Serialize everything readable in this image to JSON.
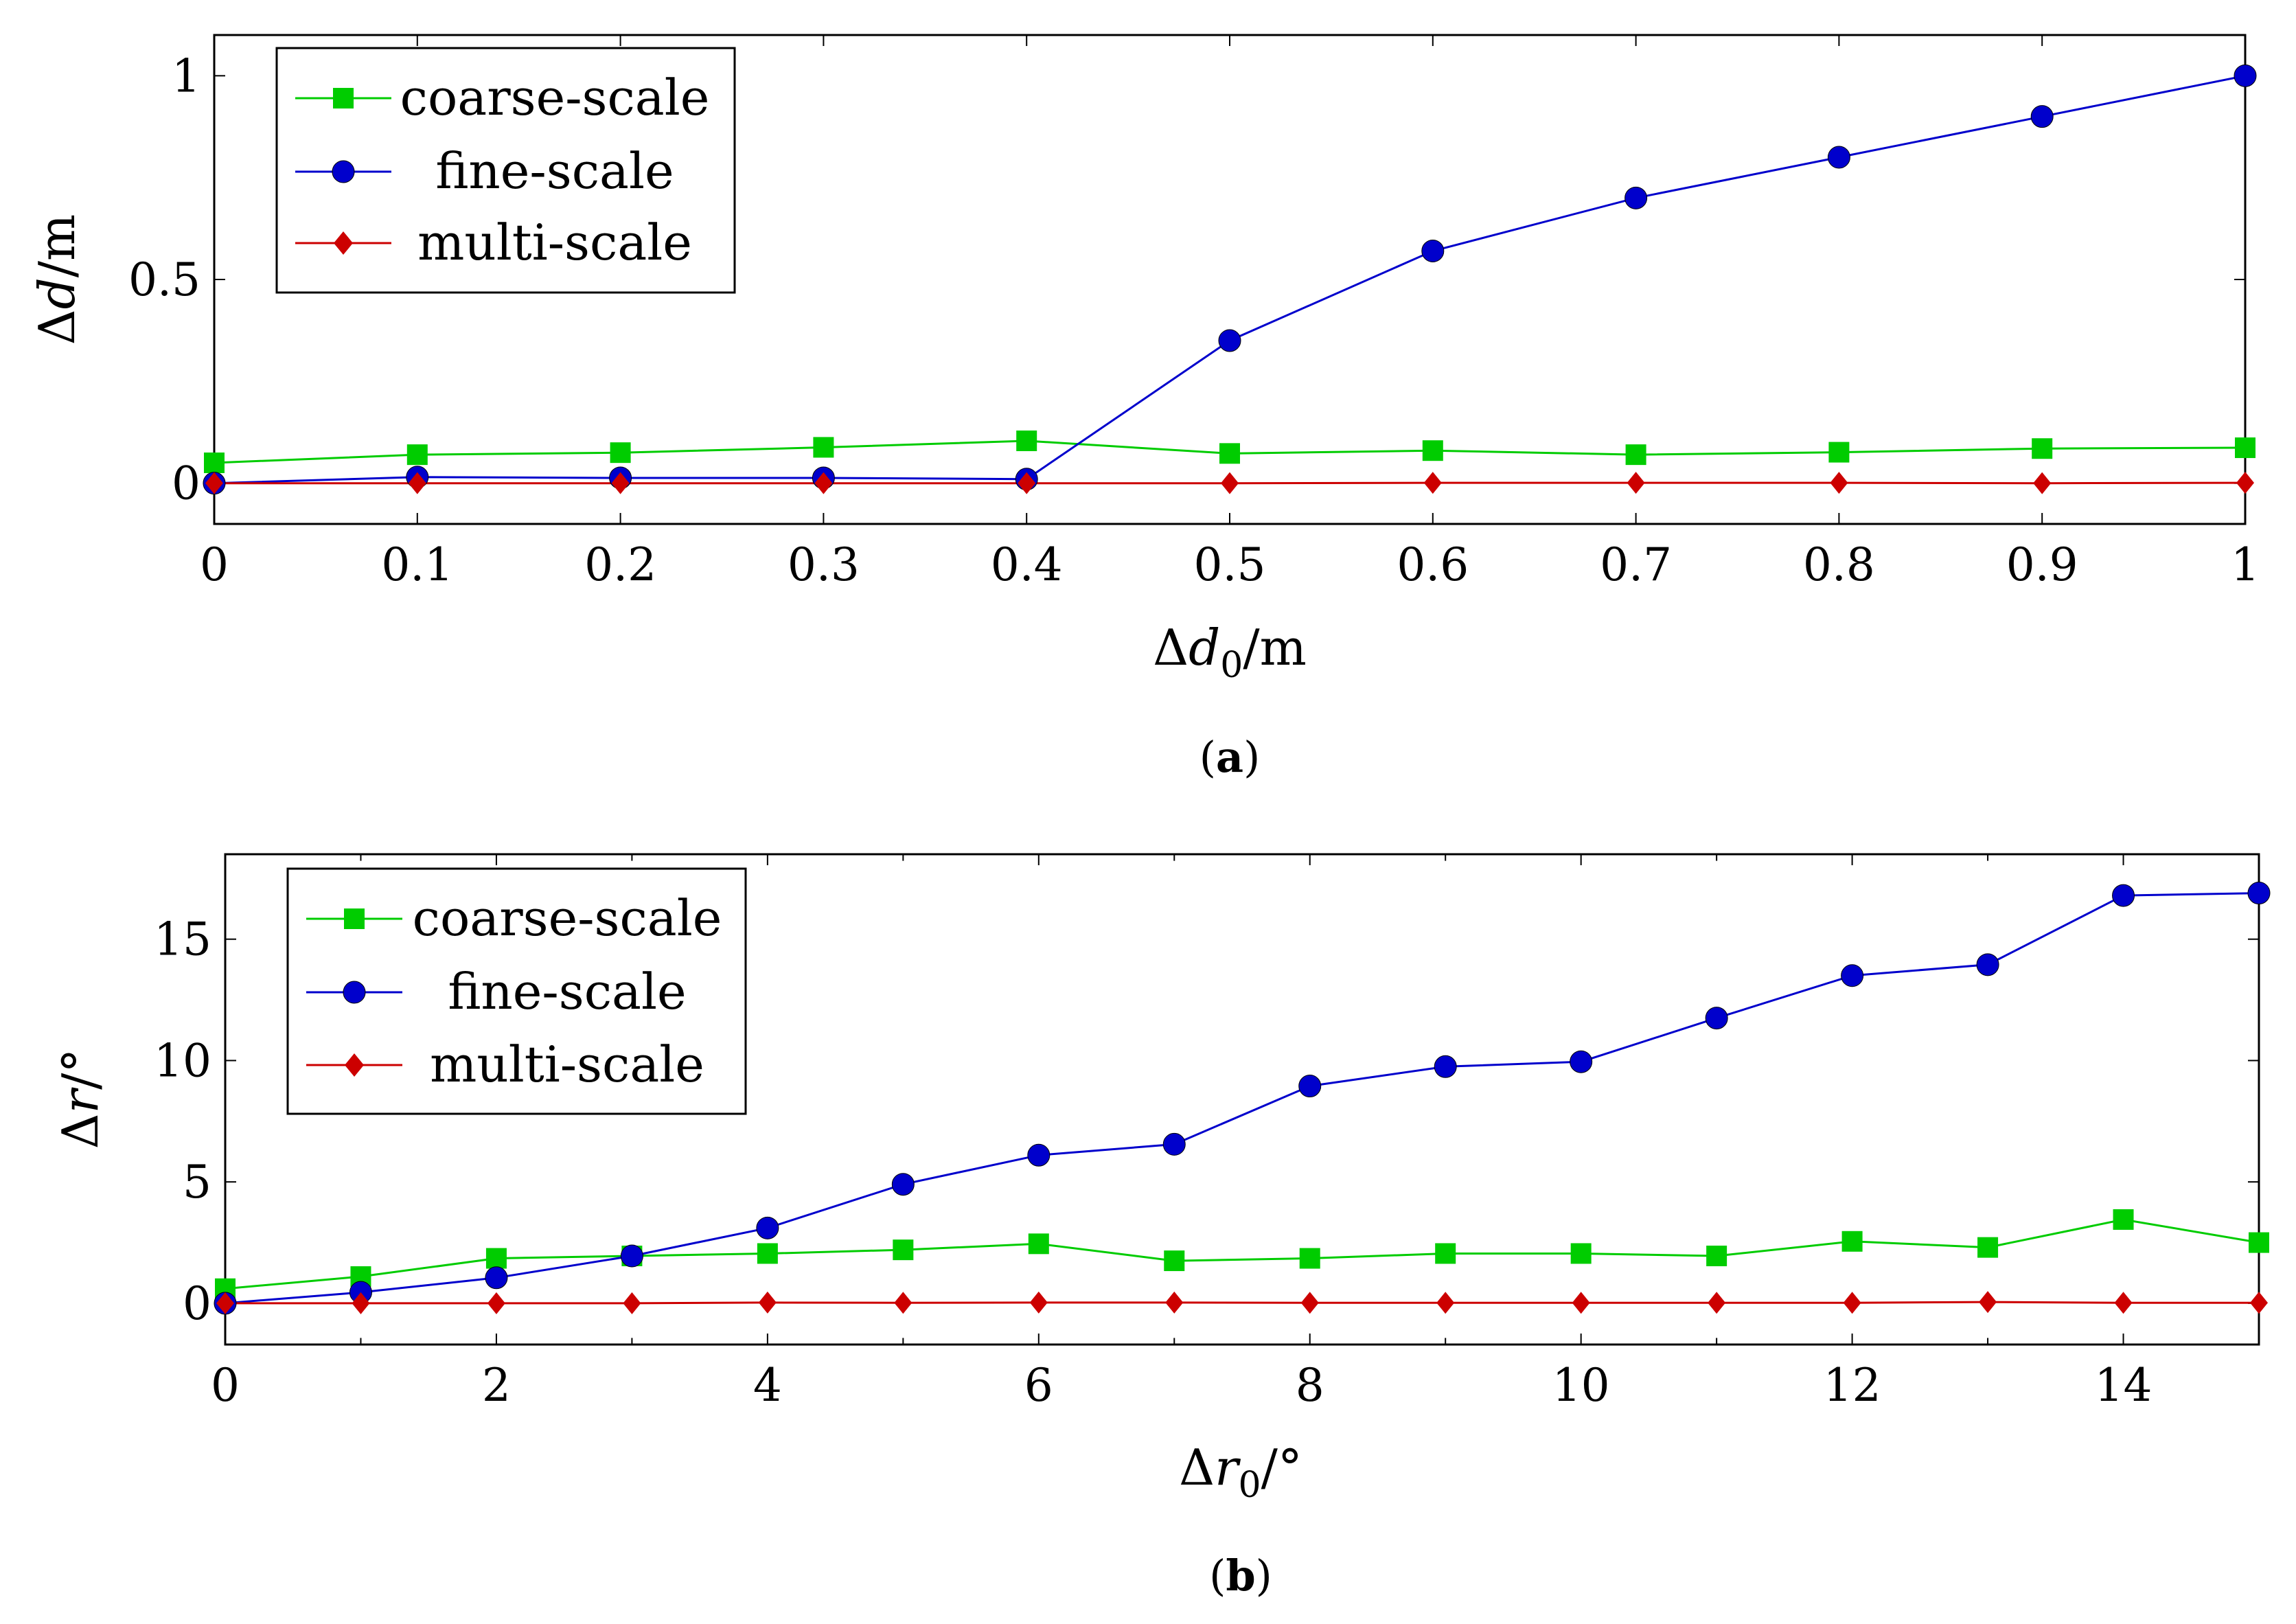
{
  "chart_data": [
    {
      "type": "line",
      "panel_label": "a",
      "xlabel": "Δd0/m",
      "xlabel_parts": {
        "base": "Δ",
        "var": "d",
        "sub": "0",
        "unit": "/m"
      },
      "ylabel": "Δd/m",
      "ylabel_parts": {
        "base": "Δ",
        "var": "d",
        "unit": "/m"
      },
      "xlim": [
        0,
        1
      ],
      "ylim": [
        -0.1,
        1.1
      ],
      "xticks": [
        0,
        0.1,
        0.2,
        0.3,
        0.4,
        0.5,
        0.6,
        0.7,
        0.8,
        0.9,
        1
      ],
      "xtick_labels": [
        "0",
        "0.1",
        "0.2",
        "0.3",
        "0.4",
        "0.5",
        "0.6",
        "0.7",
        "0.8",
        "0.9",
        "1"
      ],
      "yticks": [
        0,
        0.5,
        1
      ],
      "ytick_labels": [
        "0",
        "0.5",
        "1"
      ],
      "grid": false,
      "legend_position": "top-left",
      "x": [
        0,
        0.1,
        0.2,
        0.3,
        0.4,
        0.5,
        0.6,
        0.7,
        0.8,
        0.9,
        1
      ],
      "series": [
        {
          "name": "coarse-scale",
          "color": "#00cc00",
          "marker": "square",
          "values": [
            0.05,
            0.07,
            0.075,
            0.088,
            0.104,
            0.073,
            0.08,
            0.07,
            0.076,
            0.085,
            0.087
          ]
        },
        {
          "name": "fine-scale",
          "color": "#0000cc",
          "marker": "circle",
          "values": [
            0.0,
            0.015,
            0.013,
            0.013,
            0.01,
            0.35,
            0.57,
            0.7,
            0.8,
            0.9,
            1.0
          ]
        },
        {
          "name": "multi-scale",
          "color": "#cc0000",
          "marker": "diamond",
          "values": [
            0.0,
            0.0,
            0.0,
            0.0,
            0.0,
            0.0,
            0.001,
            0.001,
            0.001,
            0.0,
            0.001
          ]
        }
      ]
    },
    {
      "type": "line",
      "panel_label": "b",
      "xlabel": "Δr0/°",
      "xlabel_parts": {
        "base": "Δ",
        "var": "r",
        "sub": "0",
        "unit": "/°"
      },
      "ylabel": "Δr/°",
      "ylabel_parts": {
        "base": "Δ",
        "var": "r",
        "unit": "/°"
      },
      "xlim": [
        0,
        15
      ],
      "ylim": [
        -1.7,
        18.5
      ],
      "xticks": [
        0,
        2,
        4,
        6,
        8,
        10,
        12,
        14
      ],
      "xtick_labels": [
        "0",
        "2",
        "4",
        "6",
        "8",
        "10",
        "12",
        "14"
      ],
      "minor_xticks": [
        1,
        3,
        5,
        7,
        9,
        11,
        13,
        15
      ],
      "yticks": [
        0,
        5,
        10,
        15
      ],
      "ytick_labels": [
        "0",
        "5",
        "10",
        "15"
      ],
      "grid": false,
      "legend_position": "top-left",
      "x": [
        0,
        1,
        2,
        3,
        4,
        5,
        6,
        7,
        8,
        9,
        10,
        11,
        12,
        13,
        14,
        15
      ],
      "series": [
        {
          "name": "coarse-scale",
          "color": "#00cc00",
          "marker": "square",
          "values": [
            0.6,
            1.1,
            1.85,
            1.95,
            2.05,
            2.2,
            2.45,
            1.75,
            1.85,
            2.05,
            2.05,
            1.95,
            2.55,
            2.3,
            3.45,
            2.5
          ]
        },
        {
          "name": "fine-scale",
          "color": "#0000cc",
          "marker": "circle",
          "values": [
            0.0,
            0.45,
            1.05,
            1.95,
            3.1,
            4.9,
            6.1,
            6.55,
            8.95,
            9.75,
            9.95,
            11.75,
            13.5,
            13.95,
            16.8,
            16.9
          ]
        },
        {
          "name": "multi-scale",
          "color": "#cc0000",
          "marker": "diamond",
          "values": [
            0.0,
            0.0,
            0.0,
            0.0,
            0.03,
            0.02,
            0.03,
            0.03,
            0.02,
            0.02,
            0.02,
            0.02,
            0.02,
            0.05,
            0.02,
            0.02
          ]
        }
      ]
    }
  ]
}
